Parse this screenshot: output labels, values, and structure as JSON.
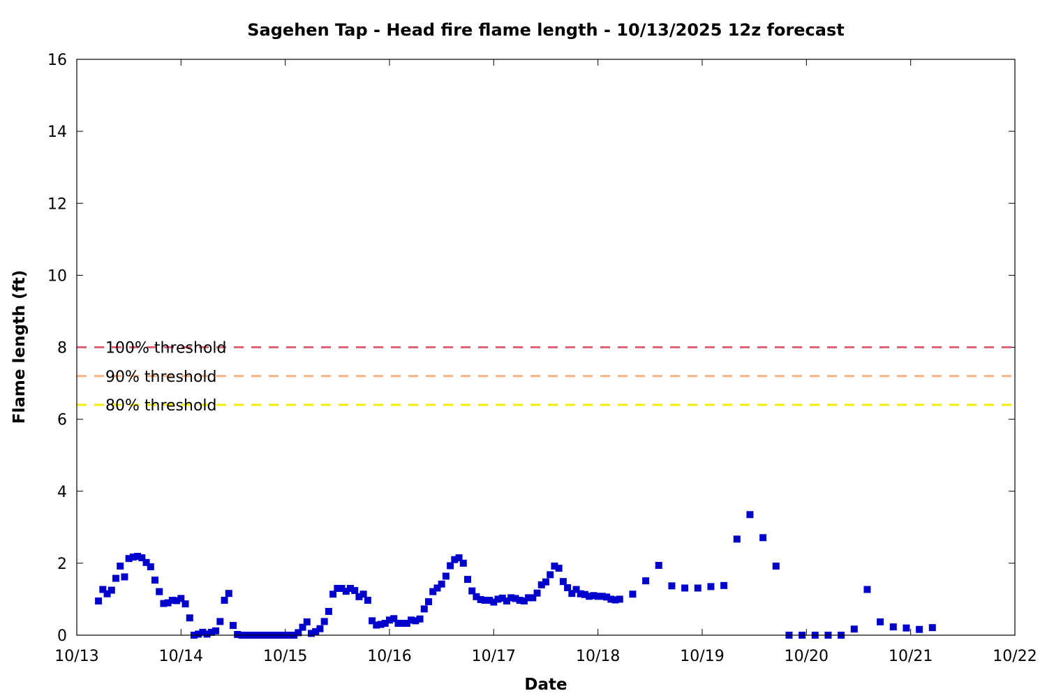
{
  "chart_data": {
    "type": "scatter",
    "title": "Sagehen Tap - Head fire flame length - 10/13/2025 12z forecast",
    "xlabel": "Date",
    "ylabel": "Flame length (ft)",
    "xlim": [
      "10/13",
      "10/22"
    ],
    "ylim": [
      0,
      16
    ],
    "x_ticks": [
      "10/13",
      "10/14",
      "10/15",
      "10/16",
      "10/17",
      "10/18",
      "10/19",
      "10/20",
      "10/21",
      "10/22"
    ],
    "y_ticks": [
      0,
      2,
      4,
      6,
      8,
      10,
      12,
      14,
      16
    ],
    "grid": false,
    "point_color": "#0000cc",
    "thresholds": [
      {
        "label": "100% threshold",
        "value": 8.0,
        "color": "#e06478"
      },
      {
        "label": "90% threshold",
        "value": 7.2,
        "color": "#f5b482"
      },
      {
        "label": "80% threshold",
        "value": 6.4,
        "color": "#f0f000"
      }
    ],
    "series": [
      {
        "points": [
          [
            "10/13 05:00",
            0.95
          ],
          [
            "10/13 06:00",
            1.27
          ],
          [
            "10/13 07:00",
            1.15
          ],
          [
            "10/13 08:00",
            1.25
          ],
          [
            "10/13 09:00",
            1.58
          ],
          [
            "10/13 10:00",
            1.92
          ],
          [
            "10/13 11:00",
            1.62
          ],
          [
            "10/13 12:00",
            2.13
          ],
          [
            "10/13 13:00",
            2.17
          ],
          [
            "10/13 14:00",
            2.19
          ],
          [
            "10/13 15:00",
            2.15
          ],
          [
            "10/13 16:00",
            2.02
          ],
          [
            "10/13 17:00",
            1.9
          ],
          [
            "10/13 18:00",
            1.53
          ],
          [
            "10/13 19:00",
            1.21
          ],
          [
            "10/13 20:00",
            0.88
          ],
          [
            "10/13 21:00",
            0.9
          ],
          [
            "10/13 22:00",
            0.97
          ],
          [
            "10/13 23:00",
            0.96
          ],
          [
            "10/14 00:00",
            1.02
          ],
          [
            "10/14 01:00",
            0.87
          ],
          [
            "10/14 02:00",
            0.48
          ],
          [
            "10/14 03:00",
            0.0
          ],
          [
            "10/14 04:00",
            0.03
          ],
          [
            "10/14 05:00",
            0.08
          ],
          [
            "10/14 06:00",
            0.03
          ],
          [
            "10/14 07:00",
            0.08
          ],
          [
            "10/14 08:00",
            0.12
          ],
          [
            "10/14 09:00",
            0.38
          ],
          [
            "10/14 10:00",
            0.97
          ],
          [
            "10/14 11:00",
            1.16
          ],
          [
            "10/14 12:00",
            0.27
          ],
          [
            "10/14 13:00",
            0.02
          ],
          [
            "10/14 14:00",
            0.0
          ],
          [
            "10/14 15:00",
            0.0
          ],
          [
            "10/14 16:00",
            0.0
          ],
          [
            "10/14 17:00",
            0.0
          ],
          [
            "10/14 18:00",
            0.0
          ],
          [
            "10/14 19:00",
            0.0
          ],
          [
            "10/14 20:00",
            0.0
          ],
          [
            "10/14 21:00",
            0.0
          ],
          [
            "10/14 22:00",
            0.0
          ],
          [
            "10/14 23:00",
            0.0
          ],
          [
            "10/15 00:00",
            0.0
          ],
          [
            "10/15 01:00",
            0.0
          ],
          [
            "10/15 02:00",
            0.0
          ],
          [
            "10/15 03:00",
            0.07
          ],
          [
            "10/15 04:00",
            0.22
          ],
          [
            "10/15 05:00",
            0.37
          ],
          [
            "10/15 06:00",
            0.05
          ],
          [
            "10/15 07:00",
            0.1
          ],
          [
            "10/15 08:00",
            0.18
          ],
          [
            "10/15 09:00",
            0.38
          ],
          [
            "10/15 10:00",
            0.66
          ],
          [
            "10/15 11:00",
            1.14
          ],
          [
            "10/15 12:00",
            1.3
          ],
          [
            "10/15 13:00",
            1.3
          ],
          [
            "10/15 14:00",
            1.22
          ],
          [
            "10/15 15:00",
            1.3
          ],
          [
            "10/15 16:00",
            1.24
          ],
          [
            "10/15 17:00",
            1.07
          ],
          [
            "10/15 18:00",
            1.14
          ],
          [
            "10/15 19:00",
            0.97
          ],
          [
            "10/15 20:00",
            0.4
          ],
          [
            "10/15 21:00",
            0.28
          ],
          [
            "10/15 22:00",
            0.3
          ],
          [
            "10/15 23:00",
            0.33
          ],
          [
            "10/16 00:00",
            0.42
          ],
          [
            "10/16 01:00",
            0.46
          ],
          [
            "10/16 02:00",
            0.33
          ],
          [
            "10/16 03:00",
            0.33
          ],
          [
            "10/16 04:00",
            0.33
          ],
          [
            "10/16 05:00",
            0.42
          ],
          [
            "10/16 06:00",
            0.4
          ],
          [
            "10/16 07:00",
            0.45
          ],
          [
            "10/16 08:00",
            0.73
          ],
          [
            "10/16 09:00",
            0.93
          ],
          [
            "10/16 10:00",
            1.21
          ],
          [
            "10/16 11:00",
            1.31
          ],
          [
            "10/16 12:00",
            1.42
          ],
          [
            "10/16 13:00",
            1.64
          ],
          [
            "10/16 14:00",
            1.93
          ],
          [
            "10/16 15:00",
            2.1
          ],
          [
            "10/16 16:00",
            2.15
          ],
          [
            "10/16 17:00",
            2.0
          ],
          [
            "10/16 18:00",
            1.55
          ],
          [
            "10/16 19:00",
            1.23
          ],
          [
            "10/16 20:00",
            1.07
          ],
          [
            "10/16 21:00",
            0.99
          ],
          [
            "10/16 22:00",
            0.97
          ],
          [
            "10/16 23:00",
            0.97
          ],
          [
            "10/17 00:00",
            0.92
          ],
          [
            "10/17 01:00",
            1.0
          ],
          [
            "10/17 02:00",
            1.03
          ],
          [
            "10/17 03:00",
            0.95
          ],
          [
            "10/17 04:00",
            1.04
          ],
          [
            "10/17 05:00",
            1.02
          ],
          [
            "10/17 06:00",
            0.97
          ],
          [
            "10/17 07:00",
            0.95
          ],
          [
            "10/17 08:00",
            1.04
          ],
          [
            "10/17 09:00",
            1.04
          ],
          [
            "10/17 10:00",
            1.17
          ],
          [
            "10/17 11:00",
            1.4
          ],
          [
            "10/17 12:00",
            1.48
          ],
          [
            "10/17 13:00",
            1.68
          ],
          [
            "10/17 14:00",
            1.92
          ],
          [
            "10/17 15:00",
            1.86
          ],
          [
            "10/17 16:00",
            1.49
          ],
          [
            "10/17 17:00",
            1.32
          ],
          [
            "10/17 18:00",
            1.16
          ],
          [
            "10/17 19:00",
            1.27
          ],
          [
            "10/17 20:00",
            1.15
          ],
          [
            "10/17 21:00",
            1.13
          ],
          [
            "10/17 22:00",
            1.08
          ],
          [
            "10/17 23:00",
            1.1
          ],
          [
            "10/18 00:00",
            1.08
          ],
          [
            "10/18 01:00",
            1.08
          ],
          [
            "10/18 02:00",
            1.06
          ],
          [
            "10/18 03:00",
            1.0
          ],
          [
            "10/18 04:00",
            0.98
          ],
          [
            "10/18 05:00",
            1.0
          ],
          [
            "10/18 08:00",
            1.14
          ],
          [
            "10/18 11:00",
            1.51
          ],
          [
            "10/18 14:00",
            1.94
          ],
          [
            "10/18 17:00",
            1.37
          ],
          [
            "10/18 20:00",
            1.31
          ],
          [
            "10/18 23:00",
            1.31
          ],
          [
            "10/19 02:00",
            1.35
          ],
          [
            "10/19 05:00",
            1.38
          ],
          [
            "10/19 08:00",
            2.67
          ],
          [
            "10/19 11:00",
            3.35
          ],
          [
            "10/19 14:00",
            2.71
          ],
          [
            "10/19 17:00",
            1.92
          ],
          [
            "10/19 20:00",
            0.0
          ],
          [
            "10/19 23:00",
            0.0
          ],
          [
            "10/20 02:00",
            0.0
          ],
          [
            "10/20 05:00",
            0.0
          ],
          [
            "10/20 08:00",
            0.0
          ],
          [
            "10/20 11:00",
            0.17
          ],
          [
            "10/20 14:00",
            1.27
          ],
          [
            "10/20 17:00",
            0.37
          ],
          [
            "10/20 20:00",
            0.23
          ],
          [
            "10/20 23:00",
            0.2
          ],
          [
            "10/21 02:00",
            0.16
          ],
          [
            "10/21 05:00",
            0.21
          ]
        ]
      }
    ]
  }
}
